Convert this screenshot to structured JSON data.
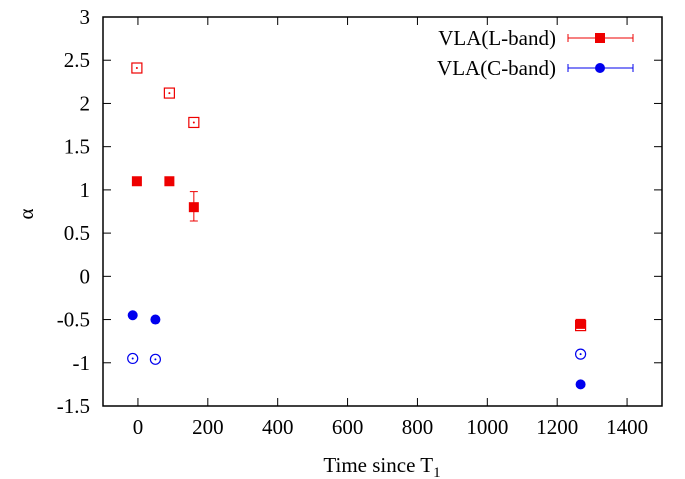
{
  "chart_data": {
    "type": "scatter",
    "xlabel": "Time since T",
    "xlabel_subscript": "1",
    "ylabel": "α",
    "xlim": [
      -100,
      1500
    ],
    "ylim": [
      -1.5,
      3
    ],
    "xticks": [
      0,
      200,
      400,
      600,
      800,
      1000,
      1200,
      1400
    ],
    "yticks": [
      -1.5,
      -1,
      -0.5,
      0,
      0.5,
      1,
      1.5,
      2,
      2.5,
      3
    ],
    "grid": false,
    "legend_position": "top-right",
    "series": [
      {
        "name": "VLA(L-band)",
        "color": "#ee0000",
        "marker": "square",
        "points": [
          {
            "x": -3,
            "y": 1.1
          },
          {
            "x": 90,
            "y": 1.1
          },
          {
            "x": 160,
            "y": 0.8,
            "yerr_low": 0.16,
            "yerr_high": 0.18
          },
          {
            "x": 1267,
            "y": -0.55
          }
        ]
      },
      {
        "name": "",
        "color": "#ee0000",
        "marker": "open-square",
        "points": [
          {
            "x": -3,
            "y": 2.41
          },
          {
            "x": 90,
            "y": 2.12
          },
          {
            "x": 160,
            "y": 1.78
          },
          {
            "x": 1267,
            "y": -0.57
          }
        ]
      },
      {
        "name": "VLA(C-band)",
        "color": "#0000ee",
        "marker": "circle",
        "points": [
          {
            "x": -15,
            "y": -0.45
          },
          {
            "x": 50,
            "y": -0.5
          },
          {
            "x": 1267,
            "y": -1.25
          }
        ]
      },
      {
        "name": "",
        "color": "#0000ee",
        "marker": "open-circle",
        "points": [
          {
            "x": -15,
            "y": -0.95
          },
          {
            "x": 50,
            "y": -0.96
          },
          {
            "x": 1267,
            "y": -0.9
          }
        ]
      }
    ]
  }
}
